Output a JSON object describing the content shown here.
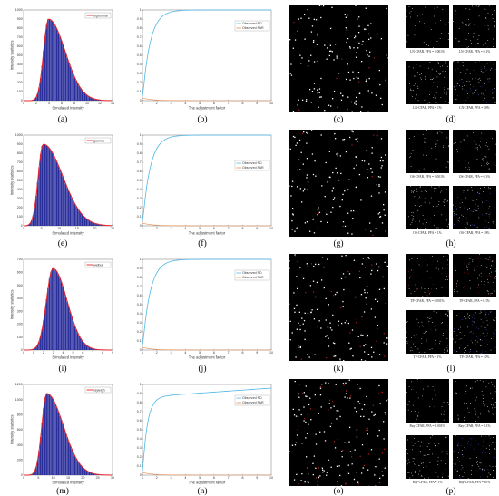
{
  "figure": {
    "rows": [
      {
        "hist": {
          "caption": "(a)",
          "legend": "lognormal",
          "xlabel": "Simulated intensity",
          "ylabel": "Intensity statistics",
          "xticks": [
            "0",
            "2",
            "4",
            "6",
            "8",
            "10",
            "12",
            "14"
          ],
          "yticks": [
            "0",
            "100",
            "200",
            "300",
            "400",
            "500",
            "600",
            "700",
            "800",
            "900",
            "1000"
          ]
        },
        "curve": {
          "caption": "(b)",
          "legend": [
            "Observed PD",
            "Observed FAR"
          ],
          "xlabel": "The adjustment factor",
          "xticks": [
            "1",
            "2",
            "3",
            "4",
            "5",
            "6",
            "7",
            "8",
            "9",
            "10"
          ],
          "yticks": [
            "0",
            "0.1",
            "0.2",
            "0.3",
            "0.4",
            "0.5",
            "0.6",
            "0.7",
            "0.8",
            "0.9",
            "1"
          ]
        },
        "image": {
          "caption": "(c)"
        },
        "grid": {
          "caption": "(d)",
          "labels": [
            "LN-CFAR, PFA = 0.001%",
            "LN-CFAR, PFA = 0.1%",
            "LN-CFAR, PFA = 1%",
            "LN-CFAR, PFA = 10%"
          ]
        }
      },
      {
        "hist": {
          "caption": "(e)",
          "legend": "gamma",
          "xlabel": "Simulated intensity",
          "ylabel": "Intensity statistics",
          "xticks": [
            "0",
            "5",
            "10",
            "15",
            "20",
            "25"
          ],
          "yticks": [
            "0",
            "100",
            "200",
            "300",
            "400",
            "500",
            "600",
            "700",
            "800",
            "900",
            "1000"
          ]
        },
        "curve": {
          "caption": "(f)",
          "legend": [
            "Observed PD",
            "Observed FAR"
          ],
          "xlabel": "The adjustment factor",
          "xticks": [
            "1",
            "2",
            "3",
            "4",
            "5",
            "6",
            "7",
            "8",
            "9",
            "10"
          ],
          "yticks": [
            "0",
            "0.1",
            "0.2",
            "0.3",
            "0.4",
            "0.5",
            "0.6",
            "0.7",
            "0.8",
            "0.9",
            "1"
          ]
        },
        "image": {
          "caption": "(g)"
        },
        "grid": {
          "caption": "(h)",
          "labels": [
            "OS-CFAR, PFA = 0.001%",
            "OS-CFAR, PFA = 0.1%",
            "OS-CFAR, PFA = 1%",
            "OS-CFAR, PFA = 10%"
          ]
        }
      },
      {
        "hist": {
          "caption": "(i)",
          "legend": "weibull",
          "xlabel": "Simulated intensity",
          "ylabel": "Intensity statistics",
          "xticks": [
            "0",
            "1",
            "2",
            "3",
            "4",
            "5",
            "6",
            "7",
            "8",
            "9"
          ],
          "yticks": [
            "0",
            "100",
            "200",
            "300",
            "400",
            "500",
            "600",
            "700"
          ]
        },
        "curve": {
          "caption": "(j)",
          "legend": [
            "Observed PD",
            "Observed FAR"
          ],
          "xlabel": "The adjustment factor",
          "xticks": [
            "1",
            "2",
            "3",
            "4",
            "5",
            "6",
            "7",
            "8",
            "9",
            "10"
          ],
          "yticks": [
            "0",
            "0.1",
            "0.2",
            "0.3",
            "0.4",
            "0.5",
            "0.6",
            "0.7",
            "0.8",
            "0.9",
            "1"
          ]
        },
        "image": {
          "caption": "(k)"
        },
        "grid": {
          "caption": "(l)",
          "labels": [
            "TP-CFAR, PFA = 0.001%",
            "TP-CFAR, PFA = 0.1%",
            "TP-CFAR, PFA = 1%",
            "TP-CFAR, PFA = 10%"
          ]
        }
      },
      {
        "hist": {
          "caption": "(m)",
          "legend": "rayleigh",
          "xlabel": "Simulated intensity",
          "ylabel": "Intensity statistics",
          "xticks": [
            "0",
            "5",
            "10",
            "15",
            "20",
            "25",
            "30"
          ],
          "yticks": [
            "0",
            "200",
            "400",
            "600",
            "800",
            "1000",
            "1200"
          ]
        },
        "curve": {
          "caption": "(n)",
          "legend": [
            "Observed PD",
            "Observed FAR"
          ],
          "xlabel": "The adjustment factor",
          "xticks": [
            "1",
            "2",
            "3",
            "4",
            "5",
            "6",
            "7",
            "8",
            "9",
            "10"
          ],
          "yticks": [
            "0",
            "0.1",
            "0.2",
            "0.3",
            "0.4",
            "0.5",
            "0.6",
            "0.7",
            "0.8",
            "0.9",
            "1"
          ]
        },
        "image": {
          "caption": "(o)"
        },
        "grid": {
          "caption": "(p)",
          "labels": [
            "Ray-CFAR, PFA = 0.001%",
            "Ray-CFAR, PFA = 0.1%",
            "Ray-CFAR, PFA = 1%",
            "Ray-CFAR, PFA = 10%"
          ]
        }
      }
    ]
  },
  "colors": {
    "bar": "#2b2f9c",
    "fit": "#e8262d",
    "pd": "#4fb6e6",
    "far": "#e8894a",
    "legend_pd": "#4fb6e6",
    "legend_far": "#e8894a"
  }
}
